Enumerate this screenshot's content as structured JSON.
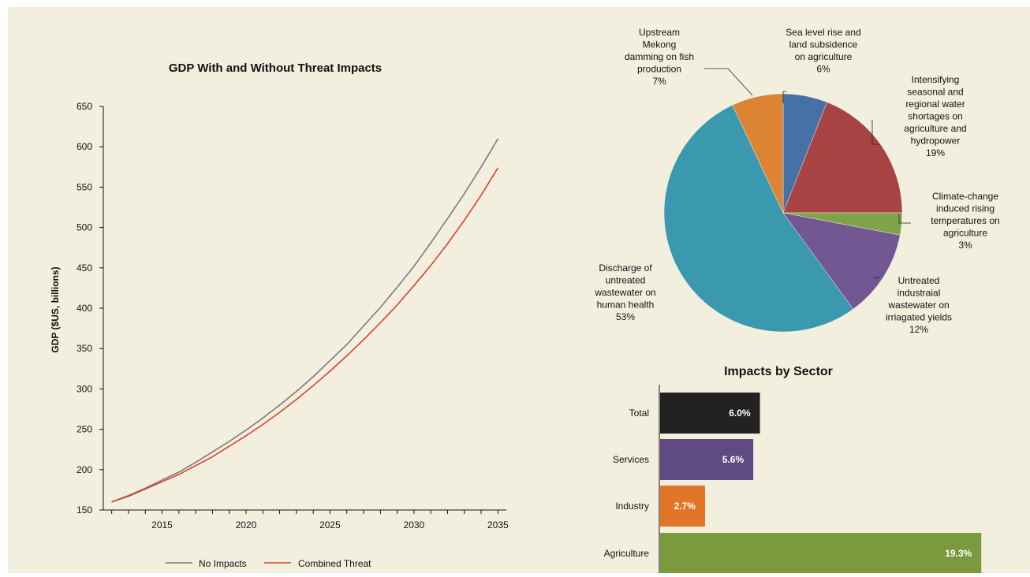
{
  "chart_data": [
    {
      "type": "line",
      "title": "GDP With and Without Threat Impacts",
      "xlabel": "",
      "ylabel": "GDP ($US, billions)",
      "xlim": [
        2011.5,
        2035.5
      ],
      "ylim": [
        150,
        650
      ],
      "yticks": [
        150,
        200,
        250,
        300,
        350,
        400,
        450,
        500,
        550,
        600,
        650
      ],
      "xticks": [
        2015,
        2020,
        2025,
        2030,
        2035
      ],
      "grid": false,
      "legend": "bottom",
      "series": [
        {
          "name": "No Impacts",
          "color": "#7a7a7a",
          "x": [
            2012,
            2013,
            2014,
            2015,
            2016,
            2017,
            2018,
            2019,
            2020,
            2021,
            2022,
            2023,
            2024,
            2025,
            2026,
            2027,
            2028,
            2029,
            2030,
            2031,
            2032,
            2033,
            2034,
            2035
          ],
          "y": [
            160,
            168,
            177,
            187,
            197,
            209,
            222,
            235,
            249,
            264,
            280,
            297,
            315,
            335,
            355,
            378,
            401,
            426,
            452,
            481,
            511,
            542,
            575,
            610
          ]
        },
        {
          "name": "Combined Threat",
          "color": "#d9412b",
          "x": [
            2012,
            2013,
            2014,
            2015,
            2016,
            2017,
            2018,
            2019,
            2020,
            2021,
            2022,
            2023,
            2024,
            2025,
            2026,
            2027,
            2028,
            2029,
            2030,
            2031,
            2032,
            2033,
            2034,
            2035
          ],
          "y": [
            160,
            167,
            176,
            185,
            194,
            205,
            216,
            229,
            242,
            256,
            271,
            287,
            304,
            322,
            341,
            361,
            382,
            404,
            428,
            453,
            480,
            509,
            540,
            574
          ]
        }
      ]
    },
    {
      "type": "pie",
      "title": "",
      "slices": [
        {
          "lines": [
            "Sea level rise and",
            "land subsidence",
            "on agriculture",
            "6%"
          ],
          "value": 6,
          "color": "#4671a6"
        },
        {
          "lines": [
            "Intensifying",
            "seasonal and",
            "regional water",
            "shortages on",
            "agriculture and",
            "hydropower",
            "19%"
          ],
          "value": 19,
          "color": "#a84343"
        },
        {
          "lines": [
            "Climate-change",
            "induced rising",
            "temperatures on",
            "agriculture",
            "3%"
          ],
          "value": 3,
          "color": "#7fa24a"
        },
        {
          "lines": [
            "Untreated",
            "industraial",
            "wastewater on",
            "irriagated yields",
            "12%"
          ],
          "value": 12,
          "color": "#725792"
        },
        {
          "lines": [
            "Discharge of",
            "untreated",
            "wastewater on",
            "human health",
            "53%"
          ],
          "value": 53,
          "color": "#3b99af"
        },
        {
          "lines": [
            "Upstream",
            "Mekong",
            "damming on fish",
            "production",
            "7%"
          ],
          "value": 7,
          "color": "#dd8434"
        }
      ]
    },
    {
      "type": "bar",
      "orientation": "horizontal",
      "title": "Impacts by Sector",
      "categories": [
        "Total",
        "Services",
        "Industry",
        "Agriculture"
      ],
      "values": [
        6.0,
        5.6,
        2.7,
        19.3
      ],
      "value_labels": [
        "6.0%",
        "5.6%",
        "2.7%",
        "19.3%"
      ],
      "colors": [
        "#222222",
        "#5f4b82",
        "#e37528",
        "#7b9a3d"
      ]
    }
  ]
}
